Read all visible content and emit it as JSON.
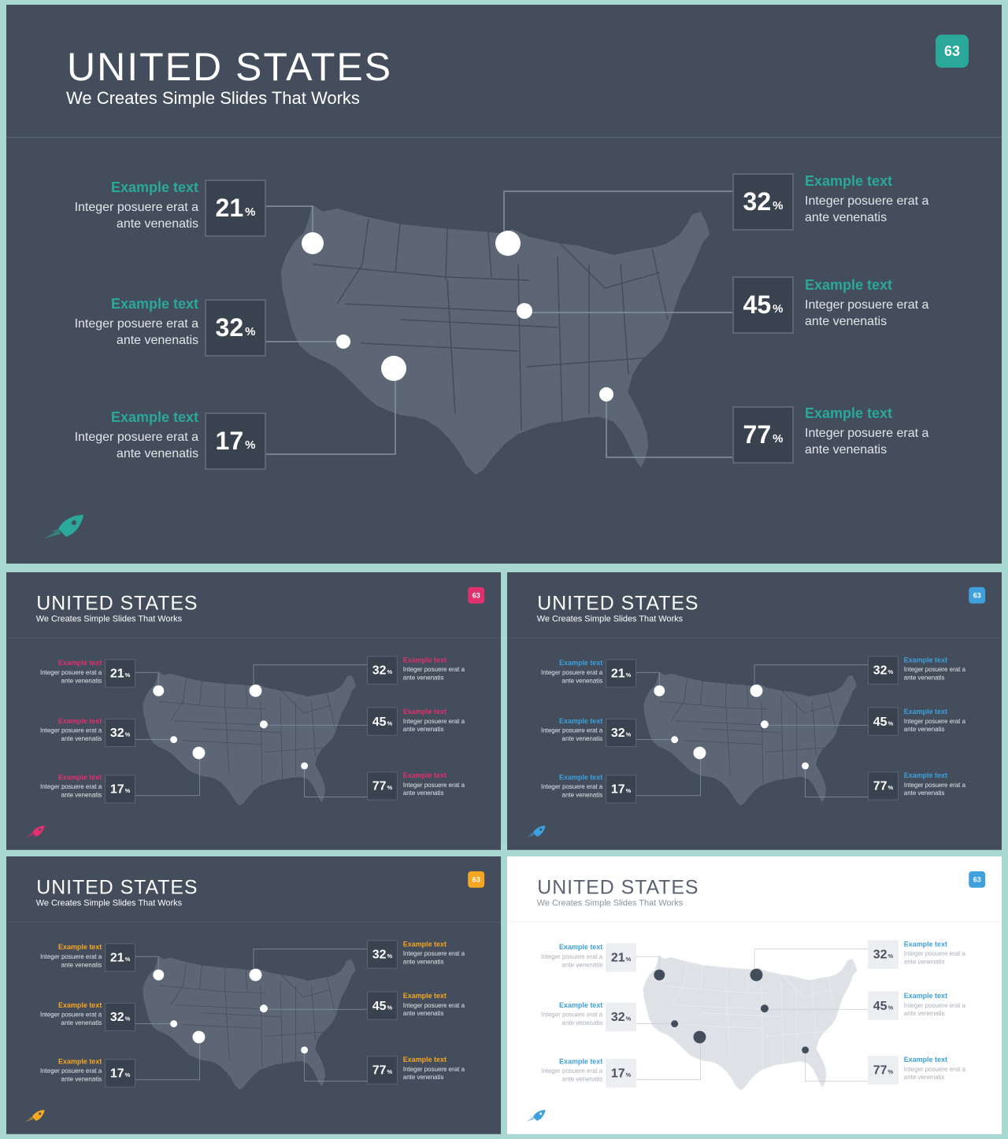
{
  "slides": [
    {
      "theme": "dark",
      "accent": "#2aa89a",
      "title": "UNITED STATES",
      "subtitle": "We Creates Simple Slides That Works",
      "page_number": "63",
      "rocket_icon": "rocket-icon",
      "callouts": [
        {
          "heading": "Example text",
          "body": "Integer posuere erat a ante venenatis",
          "value": "21",
          "unit": "%"
        },
        {
          "heading": "Example text",
          "body": "Integer posuere erat a ante venenatis",
          "value": "32",
          "unit": "%"
        },
        {
          "heading": "Example text",
          "body": "Integer posuere erat a ante venenatis",
          "value": "17",
          "unit": "%"
        },
        {
          "heading": "Example text",
          "body": "Integer posuere erat a ante venenatis",
          "value": "32",
          "unit": "%"
        },
        {
          "heading": "Example text",
          "body": "Integer posuere erat a ante venenatis",
          "value": "45",
          "unit": "%"
        },
        {
          "heading": "Example text",
          "body": "Integer posuere erat a ante venenatis",
          "value": "77",
          "unit": "%"
        }
      ]
    },
    {
      "theme": "dark",
      "accent": "#e0306e",
      "title": "UNITED STATES",
      "subtitle": "We Creates Simple Slides That Works",
      "page_number": "63",
      "rocket_icon": "rocket-icon",
      "callouts": [
        {
          "heading": "Example text",
          "body": "Integer posuere erat a ante venenatis",
          "value": "21",
          "unit": "%"
        },
        {
          "heading": "Example text",
          "body": "Integer posuere erat a ante venenatis",
          "value": "32",
          "unit": "%"
        },
        {
          "heading": "Example text",
          "body": "Integer posuere erat a ante venenatis",
          "value": "17",
          "unit": "%"
        },
        {
          "heading": "Example text",
          "body": "Integer posuere erat a ante venenatis",
          "value": "32",
          "unit": "%"
        },
        {
          "heading": "Example text",
          "body": "Integer posuere erat a ante venenatis",
          "value": "45",
          "unit": "%"
        },
        {
          "heading": "Example text",
          "body": "Integer posuere erat a ante venenatis",
          "value": "77",
          "unit": "%"
        }
      ]
    },
    {
      "theme": "dark",
      "accent": "#3ea0dc",
      "title": "UNITED STATES",
      "subtitle": "We Creates Simple Slides That Works",
      "page_number": "63",
      "rocket_icon": "rocket-icon",
      "callouts": [
        {
          "heading": "Example text",
          "body": "Integer posuere erat a ante venenatis",
          "value": "21",
          "unit": "%"
        },
        {
          "heading": "Example text",
          "body": "Integer posuere erat a ante venenatis",
          "value": "32",
          "unit": "%"
        },
        {
          "heading": "Example text",
          "body": "Integer posuere erat a ante venenatis",
          "value": "17",
          "unit": "%"
        },
        {
          "heading": "Example text",
          "body": "Integer posuere erat a ante venenatis",
          "value": "32",
          "unit": "%"
        },
        {
          "heading": "Example text",
          "body": "Integer posuere erat a ante venenatis",
          "value": "45",
          "unit": "%"
        },
        {
          "heading": "Example text",
          "body": "Integer posuere erat a ante venenatis",
          "value": "77",
          "unit": "%"
        }
      ]
    },
    {
      "theme": "dark",
      "accent": "#f5a623",
      "title": "UNITED STATES",
      "subtitle": "We Creates Simple Slides That Works",
      "page_number": "63",
      "rocket_icon": "rocket-icon",
      "callouts": [
        {
          "heading": "Example text",
          "body": "Integer posuere erat a ante venenatis",
          "value": "21",
          "unit": "%"
        },
        {
          "heading": "Example text",
          "body": "Integer posuere erat a ante venenatis",
          "value": "32",
          "unit": "%"
        },
        {
          "heading": "Example text",
          "body": "Integer posuere erat a ante venenatis",
          "value": "17",
          "unit": "%"
        },
        {
          "heading": "Example text",
          "body": "Integer posuere erat a ante venenatis",
          "value": "32",
          "unit": "%"
        },
        {
          "heading": "Example text",
          "body": "Integer posuere erat a ante venenatis",
          "value": "45",
          "unit": "%"
        },
        {
          "heading": "Example text",
          "body": "Integer posuere erat a ante venenatis",
          "value": "77",
          "unit": "%"
        }
      ]
    },
    {
      "theme": "light",
      "accent": "#3ea0dc",
      "title": "UNITED STATES",
      "subtitle": "We Creates Simple Slides That Works",
      "page_number": "63",
      "rocket_icon": "rocket-icon",
      "callouts": [
        {
          "heading": "Example text",
          "body": "Integer posuere erat a ante venenatis",
          "value": "21",
          "unit": "%"
        },
        {
          "heading": "Example text",
          "body": "Integer posuere erat a ante venenatis",
          "value": "32",
          "unit": "%"
        },
        {
          "heading": "Example text",
          "body": "Integer posuere erat a ante venenatis",
          "value": "17",
          "unit": "%"
        },
        {
          "heading": "Example text",
          "body": "Integer posuere erat a ante venenatis",
          "value": "32",
          "unit": "%"
        },
        {
          "heading": "Example text",
          "body": "Integer posuere erat a ante venenatis",
          "value": "45",
          "unit": "%"
        },
        {
          "heading": "Example text",
          "body": "Integer posuere erat a ante venenatis",
          "value": "77",
          "unit": "%"
        }
      ]
    }
  ]
}
